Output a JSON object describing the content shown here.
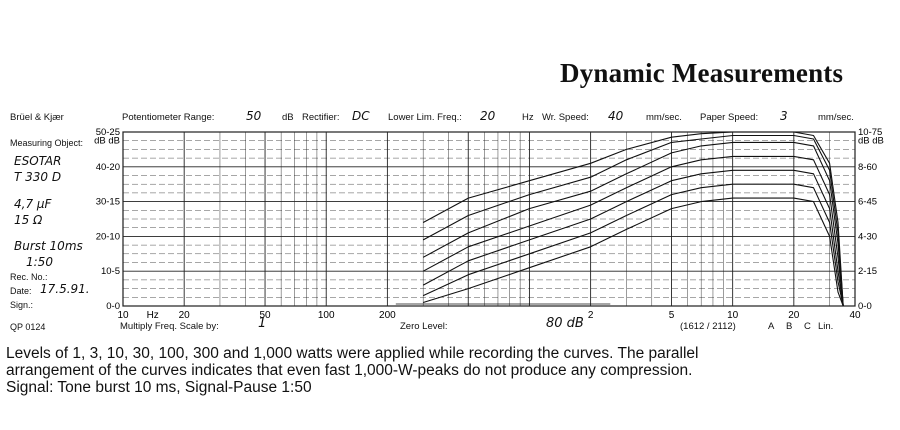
{
  "title": "Dynamic Measurements",
  "header": {
    "brand": "Brüel & Kjær",
    "pot_label": "Potentiometer Range:",
    "pot_value": "50",
    "pot_unit": "dB",
    "rect_label": "Rectifier:",
    "rect_value": "DC",
    "llf_label": "Lower Lim. Freq.:",
    "llf_value": "20",
    "llf_unit": "Hz",
    "wr_label": "Wr. Speed:",
    "wr_value": "40",
    "wr_unit": "mm/sec.",
    "ps_label": "Paper Speed:",
    "ps_value": "3",
    "ps_unit": "mm/sec."
  },
  "left": {
    "measuring_object": "Measuring Object:",
    "object_lines": [
      "ESOTAR",
      "T 330 D",
      "4,7 µF",
      "15 Ω",
      "Burst 10ms",
      "1:50"
    ],
    "rec_no": "Rec. No.:",
    "date_label": "Date:",
    "date_value": "17.5.91.",
    "sign": "Sign.:",
    "qp": "QP 0124"
  },
  "footer": {
    "multiply_label": "Multiply Freq. Scale by:",
    "multiply_value": "1",
    "zero_label": "Zero Level:",
    "zero_value": "80 dB",
    "code": "(1612 / 2112)",
    "filters": [
      "A",
      "B",
      "C",
      "Lin."
    ]
  },
  "caption": [
    "Levels of 1, 3, 10, 30, 100, 300 and 1,000 watts were applied while recording the curves. The parallel",
    "arrangement of the curves indicates that even fast 1,000-W-peaks do not produce any compression.",
    "Signal: Tone burst 10 ms, Signal-Pause 1:50"
  ],
  "chart_data": {
    "type": "line",
    "x_axis": {
      "scale": "log",
      "unit": "Hz",
      "range": [
        10,
        40000
      ],
      "tick_labels": [
        "10",
        "Hz",
        "20",
        "50",
        "100",
        "200",
        "2",
        "5",
        "10",
        "20",
        "40"
      ]
    },
    "y_axis": {
      "range_db": [
        0,
        50
      ],
      "left_tick_labels": [
        "50-25",
        "dB dB",
        "40-20",
        "30-15",
        "20-10",
        "10-5",
        "0-0"
      ],
      "right_tick_labels": [
        "10-75",
        "dB dB",
        "8-60",
        "6-45",
        "4-30",
        "2-15",
        "0-0"
      ]
    },
    "grid": true,
    "x": [
      300,
      500,
      1000,
      2000,
      3000,
      5000,
      7000,
      10000,
      15000,
      20000,
      25000,
      30000,
      33000,
      35000
    ],
    "series": [
      {
        "values": [
          1,
          5,
          11,
          17,
          22,
          28,
          30,
          31,
          31,
          31,
          30,
          20,
          4,
          0
        ]
      },
      {
        "values": [
          3,
          9,
          15,
          21,
          26,
          32,
          34,
          35,
          35,
          35,
          34,
          24,
          7,
          0
        ]
      },
      {
        "values": [
          6,
          13,
          19,
          25,
          30,
          36,
          38,
          39,
          39,
          39,
          38,
          28,
          10,
          0
        ]
      },
      {
        "values": [
          10,
          17,
          23,
          29,
          34,
          40,
          42,
          43,
          43,
          43,
          42,
          32,
          14,
          0
        ]
      },
      {
        "values": [
          14,
          21,
          28,
          33,
          38,
          44,
          46,
          47,
          47,
          47,
          46,
          36,
          18,
          0
        ]
      },
      {
        "values": [
          19,
          26,
          32,
          37,
          42,
          47,
          48,
          49,
          49,
          49,
          48,
          39,
          21,
          0
        ]
      },
      {
        "values": [
          24,
          31,
          36,
          41,
          45,
          48.5,
          49.5,
          50,
          50,
          50,
          49,
          41,
          24,
          0
        ]
      }
    ]
  }
}
